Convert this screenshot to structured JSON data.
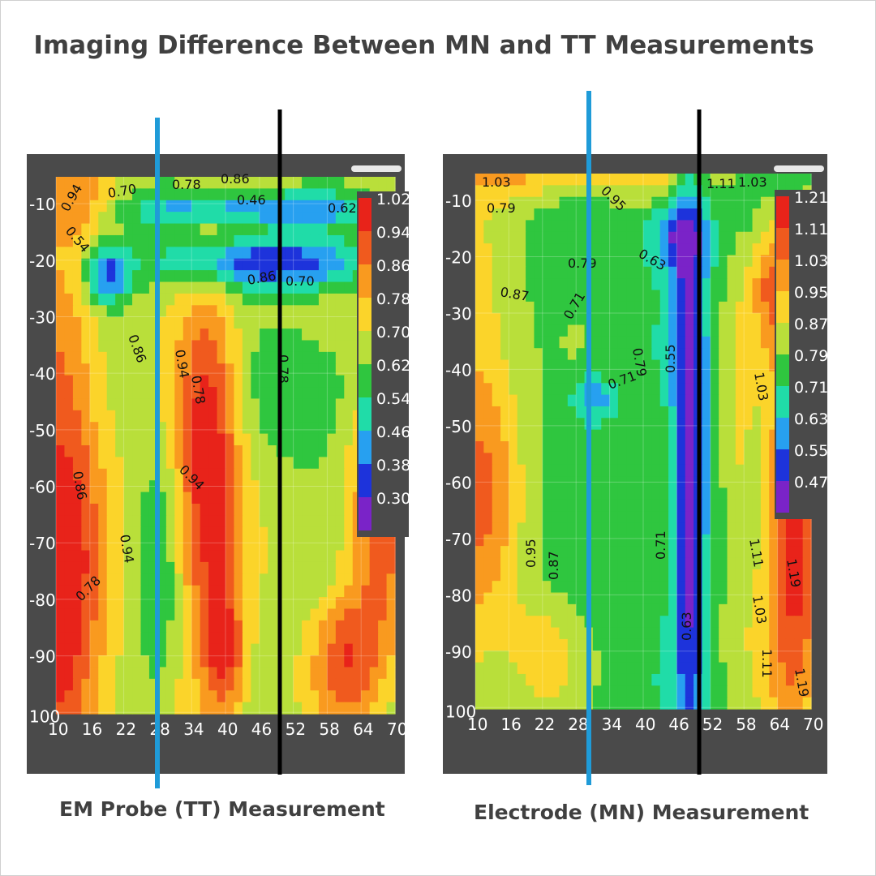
{
  "title": "Imaging Difference Between MN and TT Measurements",
  "chart_data": [
    {
      "type": "heatmap",
      "caption": "EM Probe (TT) Measurement",
      "x_ticks": [
        "10",
        "16",
        "22",
        "28",
        "34",
        "40",
        "46",
        "52",
        "58",
        "64",
        "70"
      ],
      "y_ticks": [
        "-10",
        "-20",
        "-30",
        "-40",
        "-50",
        "-60",
        "-70",
        "-80",
        "-90",
        "100"
      ],
      "xlim": [
        10,
        70
      ],
      "ylim": [
        -100,
        -5
      ],
      "colorbar": {
        "labels": [
          "1.02",
          "0.94",
          "0.86",
          "0.78",
          "0.70",
          "0.62",
          "0.54",
          "0.46",
          "0.38",
          "0.30"
        ],
        "colors": [
          "#e8231a",
          "#f05a1e",
          "#f99a1f",
          "#fbd42a",
          "#b9df3a",
          "#2fc63f",
          "#20dca8",
          "#27a0f0",
          "#1d33db",
          "#7a23c8"
        ]
      },
      "contour_labels": [
        "0.94",
        "0.70",
        "0.78",
        "0.86",
        "0.54",
        "0.46",
        "0.62",
        "0.86",
        "0.94",
        "0.78",
        "0.86",
        "0.70",
        "0.78",
        "0.94",
        "0.86",
        "0.94",
        "0.78"
      ],
      "value_range": [
        0.3,
        1.02
      ]
    },
    {
      "type": "heatmap",
      "caption": "Electrode (MN) Measurement",
      "x_ticks": [
        "10",
        "16",
        "22",
        "28",
        "34",
        "40",
        "46",
        "52",
        "58",
        "64",
        "70"
      ],
      "y_ticks": [
        "-10",
        "-20",
        "-30",
        "-40",
        "-50",
        "-60",
        "-70",
        "-80",
        "-90",
        "100"
      ],
      "xlim": [
        10,
        70
      ],
      "ylim": [
        -100,
        -5
      ],
      "colorbar": {
        "labels": [
          "1.21",
          "1.11",
          "1.03",
          "0.95",
          "0.87",
          "0.79",
          "0.71",
          "0.63",
          "0.55",
          "0.47"
        ],
        "colors": [
          "#e8231a",
          "#f05a1e",
          "#f99a1f",
          "#fbd42a",
          "#b9df3a",
          "#2fc63f",
          "#20dca8",
          "#27a0f0",
          "#1d33db",
          "#7a23c8"
        ]
      },
      "contour_labels": [
        "1.03",
        "0.95",
        "0.79",
        "1.11",
        "1.03",
        "0.87",
        "0.79",
        "0.71",
        "0.63",
        "0.55",
        "0.71",
        "0.79",
        "1.03",
        "1.11",
        "1.19",
        "0.95",
        "0.87",
        "0.71",
        "0.63",
        "1.03",
        "1.11",
        "1.19"
      ],
      "value_range": [
        0.47,
        1.21
      ]
    }
  ]
}
